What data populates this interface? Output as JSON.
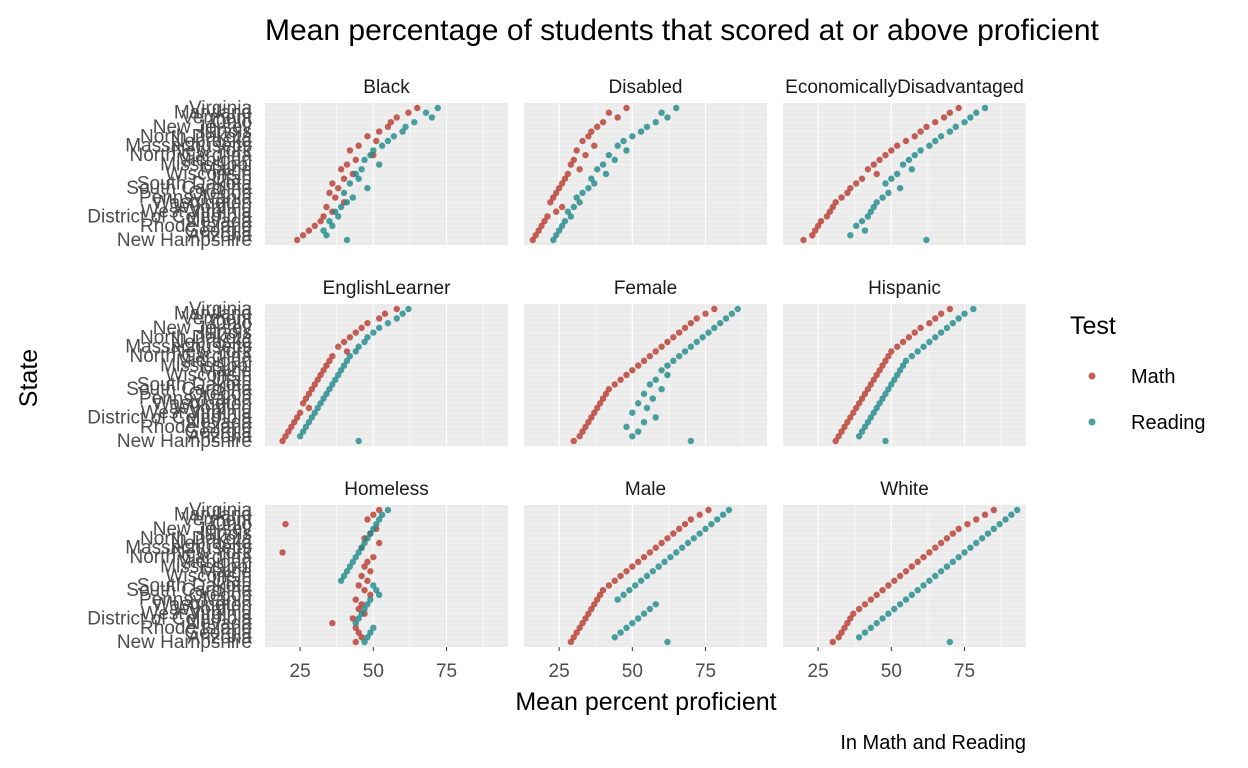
{
  "chart_data": {
    "type": "scatter",
    "title": "Mean percentage of students that scored at or above proficient",
    "xlabel": "Mean percent proficient",
    "ylabel": "State",
    "caption": "In Math and Reading",
    "xlim": [
      13,
      96
    ],
    "xticks": [
      25,
      50,
      75
    ],
    "grid": true,
    "legend": {
      "title": "Test",
      "position": "right",
      "entries": [
        {
          "name": "Math",
          "color": "#B83A2E"
        },
        {
          "name": "Reading",
          "color": "#1E8A8A"
        }
      ]
    },
    "states": [
      "Virginia",
      "Maryland",
      "Vermont",
      "Ohio",
      "New Jersey",
      "Illinois",
      "North Dakota",
      "Nebraska",
      "Massachusetts",
      "New York",
      "North Carolina",
      "Michigan",
      "Mississippi",
      "Maine",
      "Wisconsin",
      "Utah",
      "South Dakota",
      "South Carolina",
      "Oregon",
      "Pennsylvania",
      "Washington",
      "Wyoming",
      "West Virginia",
      "District of Columbia",
      "Nevada",
      "Rhode Island",
      "Georgia",
      "Arizona",
      "New Hampshire"
    ],
    "facets": [
      {
        "name": "Black",
        "math": [
          65,
          62,
          58,
          56,
          55,
          52,
          48,
          51,
          45,
          42,
          50,
          44,
          41,
          39,
          43,
          40,
          36,
          38,
          35,
          37,
          40,
          34,
          36,
          33,
          32,
          30,
          28,
          26,
          24
        ],
        "reading": [
          72,
          68,
          70,
          64,
          61,
          60,
          57,
          55,
          53,
          50,
          49,
          47,
          52,
          46,
          44,
          45,
          42,
          48,
          40,
          43,
          41,
          39,
          37,
          38,
          35,
          36,
          33,
          34,
          41
        ]
      },
      {
        "name": "Disabled",
        "math": [
          48,
          42,
          45,
          40,
          38,
          36,
          35,
          33,
          37,
          31,
          34,
          30,
          29,
          32,
          28,
          27,
          26,
          25,
          24,
          23,
          22,
          26,
          24,
          21,
          20,
          19,
          18,
          17,
          16
        ],
        "reading": [
          65,
          60,
          62,
          58,
          55,
          53,
          50,
          47,
          45,
          48,
          42,
          44,
          40,
          38,
          41,
          36,
          37,
          35,
          33,
          31,
          32,
          30,
          28,
          29,
          27,
          26,
          25,
          24,
          23
        ]
      },
      {
        "name": "EconomicallyDisadvantaged",
        "math": [
          73,
          70,
          68,
          65,
          62,
          60,
          58,
          55,
          52,
          50,
          48,
          46,
          44,
          42,
          45,
          40,
          38,
          36,
          35,
          33,
          31,
          30,
          29,
          28,
          26,
          25,
          24,
          23,
          20
        ],
        "reading": [
          82,
          79,
          77,
          75,
          72,
          70,
          67,
          65,
          63,
          60,
          58,
          56,
          54,
          57,
          52,
          50,
          48,
          53,
          49,
          47,
          45,
          44,
          43,
          42,
          40,
          38,
          41,
          36,
          62
        ]
      },
      {
        "name": "EnglishLearner",
        "math": [
          58,
          54,
          52,
          48,
          46,
          44,
          42,
          40,
          38,
          41,
          36,
          35,
          34,
          33,
          32,
          31,
          30,
          29,
          28,
          27,
          26,
          28,
          25,
          24,
          23,
          22,
          21,
          20,
          19
        ],
        "reading": [
          62,
          60,
          58,
          55,
          52,
          50,
          48,
          47,
          45,
          44,
          42,
          41,
          40,
          39,
          38,
          37,
          36,
          35,
          34,
          33,
          32,
          31,
          30,
          29,
          28,
          27,
          26,
          25,
          45
        ]
      },
      {
        "name": "Female",
        "math": [
          78,
          75,
          72,
          70,
          68,
          66,
          64,
          62,
          60,
          58,
          56,
          54,
          52,
          50,
          48,
          46,
          44,
          42,
          41,
          40,
          39,
          38,
          37,
          36,
          35,
          34,
          33,
          32,
          30
        ],
        "reading": [
          86,
          84,
          82,
          80,
          78,
          76,
          74,
          72,
          70,
          68,
          66,
          64,
          62,
          60,
          62,
          58,
          56,
          60,
          54,
          57,
          52,
          55,
          50,
          58,
          54,
          48,
          52,
          50,
          70
        ]
      },
      {
        "name": "Hispanic",
        "math": [
          70,
          67,
          65,
          63,
          60,
          58,
          56,
          54,
          52,
          50,
          49,
          48,
          47,
          46,
          45,
          44,
          43,
          42,
          41,
          40,
          39,
          38,
          37,
          36,
          35,
          34,
          33,
          32,
          31
        ],
        "reading": [
          78,
          75,
          73,
          71,
          69,
          67,
          65,
          63,
          61,
          59,
          57,
          55,
          54,
          53,
          52,
          51,
          50,
          49,
          48,
          47,
          46,
          45,
          44,
          43,
          42,
          41,
          40,
          39,
          48
        ]
      },
      {
        "name": "Homeless",
        "math": [
          52,
          50,
          48,
          20,
          51,
          49,
          47,
          52,
          46,
          19,
          50,
          48,
          47,
          49,
          46,
          48,
          45,
          47,
          49,
          44,
          46,
          45,
          47,
          43,
          36,
          44,
          45,
          46,
          44
        ],
        "reading": [
          55,
          53,
          52,
          51,
          50,
          49,
          48,
          47,
          46,
          45,
          44,
          43,
          42,
          41,
          40,
          39,
          50,
          51,
          52,
          49,
          48,
          47,
          46,
          45,
          44,
          50,
          49,
          48,
          47
        ]
      },
      {
        "name": "Male",
        "math": [
          76,
          73,
          70,
          68,
          66,
          64,
          62,
          60,
          58,
          56,
          54,
          52,
          50,
          48,
          46,
          44,
          42,
          40,
          39,
          38,
          37,
          36,
          35,
          34,
          33,
          32,
          31,
          30,
          29
        ],
        "reading": [
          83,
          81,
          79,
          77,
          75,
          73,
          71,
          69,
          67,
          65,
          63,
          61,
          59,
          57,
          55,
          53,
          51,
          49,
          47,
          45,
          58,
          56,
          54,
          52,
          50,
          48,
          46,
          44,
          62
        ]
      },
      {
        "name": "White",
        "math": [
          85,
          82,
          79,
          76,
          73,
          71,
          69,
          67,
          65,
          63,
          61,
          59,
          57,
          55,
          53,
          51,
          49,
          47,
          45,
          43,
          41,
          39,
          37,
          36,
          35,
          34,
          33,
          32,
          30
        ],
        "reading": [
          93,
          91,
          89,
          87,
          85,
          83,
          81,
          79,
          77,
          75,
          73,
          71,
          69,
          67,
          65,
          63,
          61,
          59,
          57,
          55,
          53,
          51,
          49,
          47,
          45,
          43,
          41,
          39,
          70
        ]
      }
    ]
  }
}
